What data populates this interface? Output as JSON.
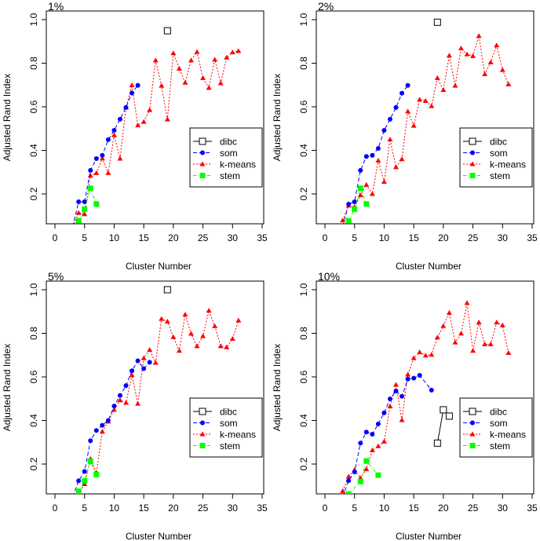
{
  "chart_data": [
    {
      "type": "line",
      "title": "1%",
      "xlabel": "Cluster Number",
      "ylabel": "Adjusted Rand Index",
      "xlim": [
        0,
        35
      ],
      "ylim": [
        0.07,
        1.0
      ],
      "xticks": [
        "0",
        "5",
        "10",
        "15",
        "20",
        "25",
        "30",
        "35"
      ],
      "yticks": [
        "0.2",
        "0.4",
        "0.6",
        "0.8",
        "1.0"
      ],
      "grid": false,
      "legend_position": "right",
      "series": [
        {
          "name": "dibc",
          "x": [
            19
          ],
          "y": [
            0.949
          ]
        },
        {
          "name": "som",
          "x": [
            3,
            4,
            5,
            6,
            7,
            8,
            9,
            10,
            11,
            12,
            13,
            14
          ],
          "y": [
            0.05,
            0.164,
            0.164,
            0.308,
            0.362,
            0.377,
            0.449,
            0.492,
            0.543,
            0.597,
            0.663,
            0.698
          ]
        },
        {
          "name": "k-means",
          "x": [
            3,
            4,
            5,
            6,
            7,
            8,
            9,
            10,
            11,
            12,
            13,
            14,
            15,
            16,
            17,
            18,
            19,
            20,
            21,
            22,
            23,
            24,
            25,
            26,
            27,
            28,
            29,
            30,
            31
          ],
          "y": [
            0.05,
            0.113,
            0.107,
            0.284,
            0.296,
            0.363,
            0.296,
            0.47,
            0.362,
            0.597,
            0.699,
            0.515,
            0.531,
            0.585,
            0.813,
            0.697,
            0.542,
            0.846,
            0.775,
            0.711,
            0.813,
            0.852,
            0.732,
            0.687,
            0.816,
            0.708,
            0.826,
            0.85,
            0.856
          ]
        },
        {
          "name": "stem",
          "x": [
            4,
            5,
            6,
            7
          ],
          "y": [
            0.077,
            0.13,
            0.226,
            0.154
          ]
        }
      ]
    },
    {
      "type": "line",
      "title": "2%",
      "xlabel": "Cluster Number",
      "ylabel": "Adjusted Rand Index",
      "xlim": [
        0,
        35
      ],
      "ylim": [
        0.07,
        1.0
      ],
      "xticks": [
        "0",
        "5",
        "10",
        "15",
        "20",
        "25",
        "30",
        "35"
      ],
      "yticks": [
        "0.2",
        "0.4",
        "0.6",
        "0.8",
        "1.0"
      ],
      "grid": false,
      "legend_position": "right",
      "series": [
        {
          "name": "dibc",
          "x": [
            19
          ],
          "y": [
            0.988
          ]
        },
        {
          "name": "som",
          "x": [
            3,
            4,
            5,
            6,
            7,
            8,
            9,
            10,
            11,
            12,
            13,
            14
          ],
          "y": [
            0.05,
            0.153,
            0.164,
            0.308,
            0.372,
            0.377,
            0.409,
            0.492,
            0.543,
            0.597,
            0.662,
            0.698
          ]
        },
        {
          "name": "k-means",
          "x": [
            3,
            4,
            5,
            6,
            7,
            8,
            9,
            10,
            11,
            12,
            13,
            14,
            15,
            16,
            17,
            18,
            19,
            20,
            21,
            22,
            23,
            24,
            25,
            26,
            27,
            28,
            29,
            30,
            31
          ],
          "y": [
            0.079,
            0.147,
            0.14,
            0.194,
            0.242,
            0.2,
            0.353,
            0.256,
            0.45,
            0.323,
            0.36,
            0.579,
            0.513,
            0.633,
            0.627,
            0.603,
            0.732,
            0.677,
            0.835,
            0.697,
            0.868,
            0.841,
            0.833,
            0.925,
            0.75,
            0.804,
            0.882,
            0.769,
            0.703
          ]
        },
        {
          "name": "stem",
          "x": [
            4,
            5,
            6,
            7
          ],
          "y": [
            0.077,
            0.13,
            0.226,
            0.154
          ]
        }
      ]
    },
    {
      "type": "line",
      "title": "5%",
      "xlabel": "Cluster Number",
      "ylabel": "Adjusted Rand Index",
      "xlim": [
        0,
        35
      ],
      "ylim": [
        0.07,
        1.0
      ],
      "xticks": [
        "0",
        "5",
        "10",
        "15",
        "20",
        "25",
        "30",
        "35"
      ],
      "yticks": [
        "0.2",
        "0.4",
        "0.6",
        "0.8",
        "1.0"
      ],
      "grid": false,
      "legend_position": "right",
      "series": [
        {
          "name": "dibc",
          "x": [
            19
          ],
          "y": [
            1.0
          ]
        },
        {
          "name": "som",
          "x": [
            3,
            4,
            5,
            6,
            7,
            8,
            9,
            10,
            11,
            12,
            13,
            14,
            15,
            16
          ],
          "y": [
            0.05,
            0.123,
            0.166,
            0.307,
            0.354,
            0.378,
            0.4,
            0.466,
            0.515,
            0.56,
            0.628,
            0.674,
            0.638,
            0.667
          ]
        },
        {
          "name": "k-means",
          "x": [
            4,
            5,
            6,
            7,
            8,
            9,
            10,
            11,
            12,
            13,
            14,
            15,
            16,
            17,
            18,
            19,
            20,
            21,
            22,
            23,
            24,
            25,
            26,
            27,
            28,
            29,
            30,
            31
          ],
          "y": [
            0.064,
            0.108,
            0.224,
            0.16,
            0.349,
            0.395,
            0.449,
            0.493,
            0.481,
            0.608,
            0.477,
            0.686,
            0.724,
            0.665,
            0.866,
            0.854,
            0.783,
            0.72,
            0.886,
            0.798,
            0.741,
            0.787,
            0.904,
            0.833,
            0.741,
            0.736,
            0.775,
            0.859
          ]
        },
        {
          "name": "stem",
          "x": [
            4,
            5,
            6,
            7
          ],
          "y": [
            0.075,
            0.123,
            0.212,
            0.152
          ]
        }
      ]
    },
    {
      "type": "line",
      "title": "10%",
      "xlabel": "Cluster Number",
      "ylabel": "Adjusted Rand Index",
      "xlim": [
        0,
        35
      ],
      "ylim": [
        0.07,
        1.0
      ],
      "xticks": [
        "0",
        "5",
        "10",
        "15",
        "20",
        "25",
        "30",
        "35"
      ],
      "yticks": [
        "0.2",
        "0.4",
        "0.6",
        "0.8",
        "1.0"
      ],
      "grid": false,
      "legend_position": "right",
      "series": [
        {
          "name": "dibc",
          "x": [
            19,
            20,
            21
          ],
          "y": [
            0.296,
            0.449,
            0.42
          ]
        },
        {
          "name": "som",
          "x": [
            3,
            4,
            5,
            6,
            7,
            8,
            9,
            10,
            11,
            12,
            13,
            14,
            15,
            16,
            18
          ],
          "y": [
            0.05,
            0.124,
            0.164,
            0.296,
            0.347,
            0.337,
            0.384,
            0.435,
            0.499,
            0.535,
            0.511,
            0.59,
            0.594,
            0.607,
            0.539
          ]
        },
        {
          "name": "k-means",
          "x": [
            3,
            4,
            5,
            6,
            7,
            8,
            9,
            10,
            11,
            12,
            13,
            14,
            15,
            16,
            17,
            18,
            19,
            20,
            21,
            22,
            23,
            24,
            25,
            26,
            27,
            28,
            29,
            30,
            31
          ],
          "y": [
            0.076,
            0.143,
            0.173,
            0.136,
            0.176,
            0.263,
            0.282,
            0.303,
            0.465,
            0.564,
            0.402,
            0.611,
            0.686,
            0.713,
            0.698,
            0.702,
            0.781,
            0.834,
            0.894,
            0.758,
            0.799,
            0.939,
            0.72,
            0.85,
            0.75,
            0.75,
            0.85,
            0.837,
            0.71
          ]
        },
        {
          "name": "stem",
          "x": [
            4,
            6,
            7,
            9
          ],
          "y": [
            0.063,
            0.12,
            0.214,
            0.149
          ]
        }
      ]
    }
  ],
  "styles": {
    "dibc": {
      "color": "#000000",
      "marker": "open-square",
      "dash": "solid"
    },
    "som": {
      "color": "#0000ff",
      "marker": "filled-circle",
      "dash": "dashed"
    },
    "k-means": {
      "color": "#ff0000",
      "marker": "filled-triangle",
      "dash": "dotted"
    },
    "stem": {
      "color": "#00ff00",
      "marker": "filled-square",
      "dash": "dashdot"
    }
  }
}
